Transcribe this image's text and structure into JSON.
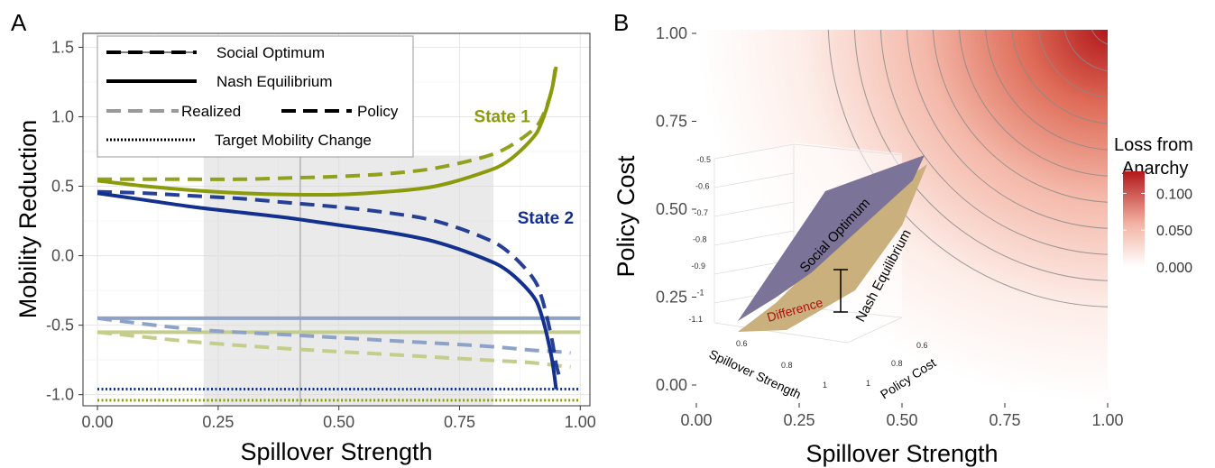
{
  "chart_data": [
    {
      "panel": "A",
      "type": "line",
      "xlabel": "Spillover Strength",
      "ylabel": "Mobility Reduction",
      "xlim": [
        -0.03,
        1.02
      ],
      "ylim": [
        -1.08,
        1.6
      ],
      "x_ticks": [
        "0.00",
        "0.25",
        "0.50",
        "0.75",
        "1.00"
      ],
      "y_ticks": [
        "-1.0",
        "-0.5",
        "0.0",
        "0.5",
        "1.0",
        "1.5"
      ],
      "grid": true,
      "shaded_region": [
        0.22,
        0.82
      ],
      "vertical_line": 0.42,
      "legend": {
        "placement": "top-left",
        "entries": [
          {
            "label": "Social Optimum",
            "style": "dashed"
          },
          {
            "label": "Nash Equilibrium",
            "style": "solid"
          },
          {
            "label": "Realized",
            "style": "light-dashed"
          },
          {
            "label": "Policy",
            "style": "dark-dashed"
          },
          {
            "label": "Target Mobility Change",
            "style": "dotted"
          }
        ]
      },
      "annotations": [
        {
          "text": "State 1",
          "x": 0.78,
          "y": 0.96,
          "color": "#8a9a0b"
        },
        {
          "text": "State 2",
          "x": 0.87,
          "y": 0.23,
          "color": "#13308f"
        }
      ],
      "colors": {
        "state1": "#8a9a0b",
        "state2": "#13308f",
        "state1_light": "#c5cd8a",
        "state2_light": "#8ea2c8"
      },
      "series": [
        {
          "state": "1",
          "kind": "nash-policy",
          "x": [
            0,
            0.1,
            0.2,
            0.3,
            0.4,
            0.5,
            0.6,
            0.7,
            0.8,
            0.85,
            0.9,
            0.92,
            0.94,
            0.95
          ],
          "y": [
            0.54,
            0.5,
            0.47,
            0.45,
            0.44,
            0.44,
            0.46,
            0.5,
            0.6,
            0.68,
            0.84,
            0.96,
            1.18,
            1.36
          ]
        },
        {
          "state": "1",
          "kind": "optimum-policy",
          "x": [
            0,
            0.1,
            0.2,
            0.3,
            0.4,
            0.5,
            0.6,
            0.7,
            0.8,
            0.85,
            0.9,
            0.92,
            0.94,
            0.95
          ],
          "y": [
            0.55,
            0.55,
            0.55,
            0.55,
            0.56,
            0.57,
            0.59,
            0.63,
            0.71,
            0.78,
            0.9,
            0.99,
            1.18,
            1.4
          ]
        },
        {
          "state": "2",
          "kind": "nash-policy",
          "x": [
            0,
            0.1,
            0.2,
            0.3,
            0.4,
            0.5,
            0.6,
            0.7,
            0.8,
            0.85,
            0.9,
            0.92,
            0.94,
            0.95
          ],
          "y": [
            0.45,
            0.4,
            0.35,
            0.31,
            0.27,
            0.22,
            0.17,
            0.1,
            -0.02,
            -0.11,
            -0.28,
            -0.43,
            -0.72,
            -0.96
          ]
        },
        {
          "state": "2",
          "kind": "optimum-policy",
          "x": [
            0,
            0.1,
            0.2,
            0.3,
            0.4,
            0.5,
            0.6,
            0.7,
            0.8,
            0.85,
            0.9,
            0.92,
            0.94,
            0.95,
            0.96
          ],
          "y": [
            0.46,
            0.45,
            0.43,
            0.41,
            0.38,
            0.35,
            0.31,
            0.25,
            0.13,
            0.03,
            -0.15,
            -0.3,
            -0.58,
            -0.78,
            -0.91
          ]
        },
        {
          "state": "1",
          "kind": "nash-realized",
          "x": [
            0,
            1
          ],
          "y": [
            -0.55,
            -0.55
          ]
        },
        {
          "state": "2",
          "kind": "nash-realized",
          "x": [
            0,
            1
          ],
          "y": [
            -0.45,
            -0.45
          ]
        },
        {
          "state": "1",
          "kind": "optimum-realized",
          "x": [
            0,
            0.2,
            0.4,
            0.6,
            0.8,
            0.9,
            0.95,
            0.98
          ],
          "y": [
            -0.55,
            -0.62,
            -0.67,
            -0.71,
            -0.75,
            -0.77,
            -0.79,
            -0.8
          ]
        },
        {
          "state": "2",
          "kind": "optimum-realized",
          "x": [
            0,
            0.2,
            0.4,
            0.6,
            0.8,
            0.9,
            0.95,
            0.98
          ],
          "y": [
            -0.45,
            -0.53,
            -0.57,
            -0.61,
            -0.65,
            -0.68,
            -0.69,
            -0.7
          ]
        },
        {
          "state": "2",
          "kind": "target",
          "x": [
            0,
            1
          ],
          "y": [
            -0.96,
            -0.96
          ]
        },
        {
          "state": "1",
          "kind": "target",
          "x": [
            0,
            1
          ],
          "y": [
            -1.04,
            -1.04
          ]
        }
      ]
    },
    {
      "panel": "B",
      "type": "heatmap",
      "xlabel": "Spillover Strength",
      "ylabel": "Policy Cost",
      "xlim": [
        0,
        1
      ],
      "ylim": [
        0,
        1
      ],
      "x_ticks": [
        "0.00",
        "0.25",
        "0.50",
        "0.75",
        "1.00"
      ],
      "y_ticks": [
        "0.00",
        "0.25",
        "0.50",
        "0.75",
        "1.00"
      ],
      "value": "Loss from Anarchy",
      "value_range": [
        0,
        0.13
      ],
      "colorbar": {
        "title_line1": "Loss from",
        "title_line2": "Anarchy",
        "ticks": [
          "0.000",
          "0.050",
          "0.100"
        ],
        "low_color": "#ffffff",
        "high_color": "#b2181b"
      },
      "contours": 11,
      "inset": {
        "type": "3d-surface",
        "z_ticks": [
          "-0.5",
          "-0.6",
          "-0.7",
          "-0.8",
          "-0.9",
          "-1",
          "-1.1"
        ],
        "x_label": "Spillover Strength",
        "x_ticks": [
          "0.6",
          "0.8",
          "1"
        ],
        "y_label": "Policy Cost",
        "y_ticks": [
          "0.6",
          "0.8",
          "1"
        ],
        "surface_top": "Social Optimum",
        "surface_bottom": "Nash Equilibrium",
        "difference_label": "Difference",
        "top_color": "#7c7399",
        "bottom_color": "#c9b07c"
      }
    }
  ],
  "panel_letters": {
    "a": "A",
    "b": "B"
  }
}
